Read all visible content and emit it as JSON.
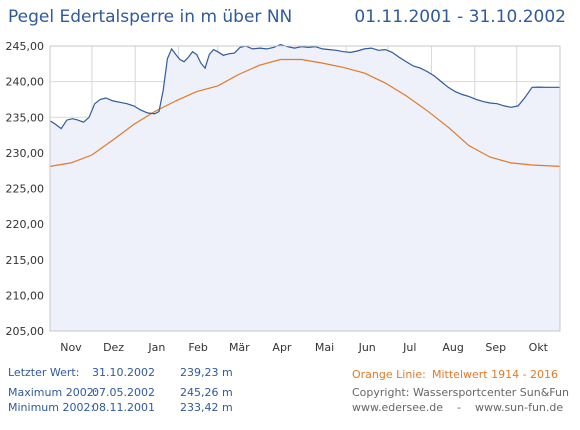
{
  "header": {
    "title": "Pegel Edertalsperre in m über NN",
    "date_range": "01.11.2001 - 31.10.2002"
  },
  "footer": {
    "last_label": "Letzter Wert:",
    "last_date": "31.10.2002",
    "last_value": "239,23 m",
    "max_label": "Maximum 2002:",
    "max_date": "07.05.2002",
    "max_value": "245,26 m",
    "min_label": "Minimum  2002:",
    "min_date": "08.11.2001",
    "min_value": "233,42 m",
    "legend_label": "Orange Linie:",
    "legend_text": "Mittelwert  1914 - 2016",
    "copyright": "Copyright: Wassersportcenter Sun&Fun",
    "websites": "www.edersee.de    -    www.sun-fun.de"
  },
  "colors": {
    "series_blue": "#2f5a9c",
    "series_orange": "#e07a28",
    "fill_blue": "#eef0fa",
    "grid": "#d8d8d8"
  },
  "chart_data": {
    "type": "line",
    "title": "Pegel Edertalsperre in m über NN",
    "xlabel": "",
    "ylabel": "",
    "ylim": [
      205,
      245
    ],
    "xlim": [
      0,
      365
    ],
    "grid": true,
    "y_ticks": [
      "205,00",
      "210,00",
      "215,00",
      "220,00",
      "225,00",
      "230,00",
      "235,00",
      "240,00",
      "245,00"
    ],
    "y_tick_values": [
      205,
      210,
      215,
      220,
      225,
      230,
      235,
      240,
      245
    ],
    "month_labels": [
      "Nov",
      "Dez",
      "Jan",
      "Feb",
      "Mär",
      "Apr",
      "Mai",
      "Jun",
      "Jul",
      "Aug",
      "Sep",
      "Okt"
    ],
    "series": [
      {
        "role": "pegel",
        "color": "#2f5a9c",
        "fill": true,
        "x": [
          0,
          4,
          8,
          12,
          16,
          20,
          24,
          28,
          32,
          36,
          40,
          45,
          50,
          55,
          60,
          65,
          70,
          75,
          78,
          81,
          84,
          87,
          90,
          93,
          96,
          99,
          102,
          105,
          108,
          111,
          114,
          117,
          120,
          124,
          128,
          132,
          136,
          140,
          145,
          150,
          155,
          160,
          165,
          170,
          175,
          180,
          185,
          190,
          195,
          200,
          205,
          210,
          215,
          220,
          225,
          230,
          235,
          240,
          245,
          250,
          255,
          260,
          265,
          270,
          275,
          280,
          285,
          290,
          295,
          300,
          305,
          310,
          315,
          320,
          325,
          330,
          335,
          340,
          345,
          350,
          355,
          360,
          365
        ],
        "y": [
          234.5,
          234.0,
          233.4,
          234.6,
          234.8,
          234.6,
          234.3,
          235.0,
          236.9,
          237.5,
          237.7,
          237.3,
          237.1,
          236.9,
          236.6,
          236.0,
          235.6,
          235.5,
          235.8,
          238.8,
          243.2,
          244.6,
          243.8,
          243.1,
          242.8,
          243.4,
          244.2,
          243.8,
          242.6,
          241.9,
          243.8,
          244.5,
          244.2,
          243.7,
          243.9,
          244.0,
          244.8,
          245.0,
          244.6,
          244.7,
          244.6,
          244.8,
          245.2,
          244.9,
          244.7,
          244.9,
          244.8,
          244.9,
          244.6,
          244.5,
          244.4,
          244.2,
          244.1,
          244.3,
          244.6,
          244.7,
          244.4,
          244.5,
          244.1,
          243.4,
          242.8,
          242.2,
          241.9,
          241.4,
          240.8,
          240.0,
          239.2,
          238.6,
          238.2,
          237.9,
          237.5,
          237.2,
          237.0,
          236.9,
          236.6,
          236.4,
          236.6,
          237.8,
          239.2,
          239.23,
          239.2,
          239.2,
          239.2
        ]
      },
      {
        "role": "mittelwert",
        "color": "#e07a28",
        "fill": false,
        "x": [
          0,
          15,
          30,
          45,
          60,
          75,
          90,
          105,
          120,
          135,
          150,
          165,
          180,
          195,
          210,
          225,
          240,
          255,
          270,
          285,
          300,
          315,
          330,
          345,
          365
        ],
        "y": [
          228.1,
          228.6,
          229.7,
          231.8,
          234.0,
          235.8,
          237.3,
          238.6,
          239.4,
          241.0,
          242.3,
          243.1,
          243.1,
          242.6,
          242.0,
          241.2,
          239.8,
          238.0,
          235.9,
          233.6,
          231.0,
          229.4,
          228.6,
          228.3,
          228.1
        ]
      }
    ]
  }
}
